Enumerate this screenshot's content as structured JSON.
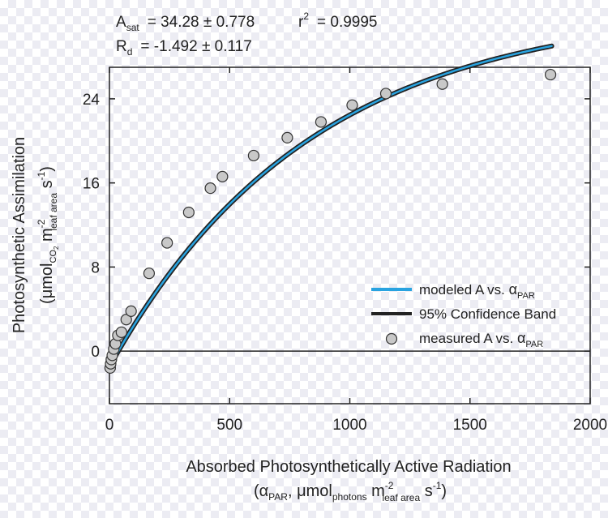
{
  "chart_data": {
    "type": "line",
    "stats": {
      "asat": {
        "symbol": "A",
        "sub": "sat",
        "value": "=  34.28 ± 0.778"
      },
      "r2": {
        "symbol": "r",
        "sup": "2",
        "value": "=  0.9995"
      },
      "rd": {
        "symbol": "R",
        "sub": "d",
        "value": "=  -1.492 ± 0.117"
      }
    },
    "xaxis": {
      "label_line1": "Absorbed Photosynthetically Active Radiation",
      "label_line2": {
        "open": "(",
        "alpha": "α",
        "alpha_sub": "PAR",
        "comma": ", ",
        "mu": "μ",
        "mol": "mol",
        "mol_sub": "photons",
        "m": " m",
        "m_sup": "-2",
        "leaf_sub": "leaf area",
        "s": " s",
        "s_sup": "-1",
        "close": ")"
      },
      "range": [
        0,
        2000
      ],
      "ticks": [
        0,
        500,
        1000,
        1500,
        2000
      ]
    },
    "yaxis": {
      "label_line1": "Photosynthetic Assimilation",
      "label_line2": {
        "open": "(",
        "mu": "μ",
        "mol": "mol",
        "co": "CO",
        "co_sub": "2",
        "m": " m",
        "m_sup": "-2",
        "leaf_sub": "leaf area",
        "s": " s",
        "s_sup": "-1",
        "close": ")"
      },
      "range": [
        -5,
        27
      ],
      "ticks": [
        0,
        8,
        16,
        24
      ]
    },
    "zero_line": true,
    "legend": {
      "placement": "bottom-right",
      "entries": [
        {
          "label": "modeled A vs. ",
          "greek": "α",
          "sub": "PAR",
          "color": "#29a3e0",
          "kind": "line"
        },
        {
          "label": "95% Confidence Band",
          "greek": "",
          "sub": "",
          "color": "#222222",
          "kind": "line"
        },
        {
          "label": "measured A vs. ",
          "greek": "α",
          "sub": "PAR",
          "color": "#c8c8c8",
          "kind": "marker"
        }
      ]
    },
    "model": {
      "name": "modeled A vs. αPAR",
      "asat": 34.28,
      "rd": -1.492,
      "k": 0.0012,
      "x_range": [
        0,
        1840
      ],
      "color": "#29a3e0"
    },
    "confidence_band_color": "#222222",
    "measured": {
      "name": "measured A vs. αPAR",
      "marker_color": "#c8c8c8",
      "x": [
        3,
        5,
        8,
        12,
        18,
        25,
        35,
        50,
        70,
        90,
        165,
        240,
        330,
        420,
        470,
        600,
        740,
        880,
        1010,
        1150,
        1385,
        1835
      ],
      "y": [
        -1.6,
        -1.2,
        -0.8,
        -0.4,
        0.2,
        0.7,
        1.5,
        1.8,
        3.0,
        3.8,
        7.4,
        10.3,
        13.2,
        15.5,
        16.6,
        18.6,
        20.3,
        21.8,
        23.4,
        24.5,
        25.4,
        26.3
      ]
    }
  }
}
